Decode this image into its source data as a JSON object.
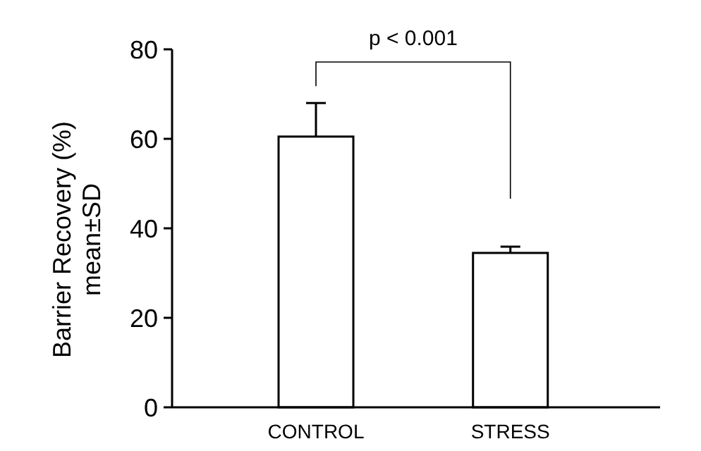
{
  "chart_data": {
    "type": "bar",
    "ylabel": "Barrier Recovery (%)\nmean±SD",
    "categories": [
      "CONTROL",
      "STRESS"
    ],
    "values": [
      60.5,
      34.5
    ],
    "errors": [
      7.5,
      1.4
    ],
    "color": "#ffffff",
    "ylim": [
      0,
      80
    ],
    "yticks": [
      0,
      20,
      40,
      60,
      80
    ],
    "annotations": [
      "p < 0.001"
    ]
  }
}
